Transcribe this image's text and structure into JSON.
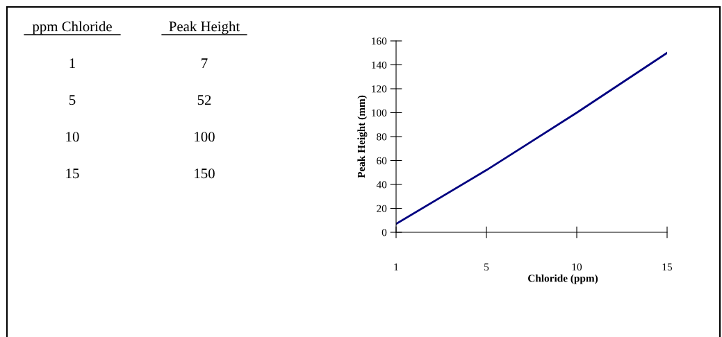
{
  "chart_data": {
    "type": "line",
    "xlabel": "Chloride (ppm)",
    "ylabel": "Peak Height (mm)",
    "categories": [
      "1",
      "5",
      "10",
      "15"
    ],
    "series": [
      {
        "color": "#000080",
        "values": [
          7,
          52,
          100,
          150
        ]
      }
    ],
    "ylim": [
      0,
      160
    ],
    "yticks": [
      0,
      20,
      40,
      60,
      80,
      100,
      120,
      140,
      160
    ],
    "grid": false,
    "legend": false,
    "marker": "none",
    "line_style": "solid",
    "annotations": [
      "ppm Chloride",
      "Peak Height",
      "1",
      "7",
      "5",
      "52",
      "10",
      "100",
      "15",
      "150"
    ]
  }
}
